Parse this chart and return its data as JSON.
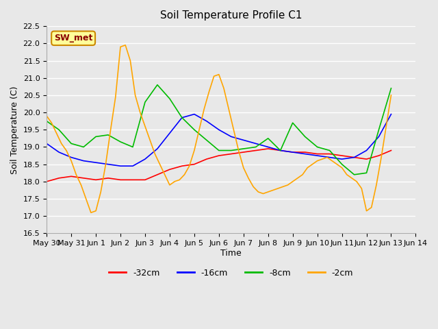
{
  "title": "Soil Temperature Profile C1",
  "xlabel": "Time",
  "ylabel": "Soil Temperature (C)",
  "ylim": [
    16.5,
    22.5
  ],
  "annotation": "SW_met",
  "annotation_color": "#8B0000",
  "annotation_bg": "#FFFF99",
  "annotation_border": "#CC8800",
  "series": {
    "-32cm": {
      "color": "#FF0000",
      "data_x": [
        0,
        0.5,
        1,
        1.5,
        2,
        2.5,
        3,
        3.5,
        4,
        4.5,
        5,
        5.5,
        6,
        6.5,
        7,
        7.5,
        8,
        8.5,
        9,
        9.5,
        10,
        10.5,
        11,
        11.5,
        12,
        12.5,
        13,
        13.5,
        14
      ],
      "data_y": [
        18.0,
        18.1,
        18.15,
        18.1,
        18.05,
        18.1,
        18.05,
        18.05,
        18.05,
        18.2,
        18.35,
        18.45,
        18.5,
        18.65,
        18.75,
        18.8,
        18.85,
        18.9,
        18.95,
        18.9,
        18.85,
        18.85,
        18.8,
        18.8,
        18.75,
        18.7,
        18.65,
        18.75,
        18.9
      ]
    },
    "-16cm": {
      "color": "#0000FF",
      "data_x": [
        0,
        0.5,
        1,
        1.5,
        2,
        2.5,
        3,
        3.5,
        4,
        4.5,
        5,
        5.5,
        6,
        6.5,
        7,
        7.5,
        8,
        8.5,
        9,
        9.5,
        10,
        10.5,
        11,
        11.5,
        12,
        12.5,
        13,
        13.5,
        14
      ],
      "data_y": [
        19.1,
        18.85,
        18.7,
        18.6,
        18.55,
        18.5,
        18.45,
        18.45,
        18.65,
        18.95,
        19.4,
        19.85,
        19.95,
        19.75,
        19.5,
        19.3,
        19.2,
        19.1,
        19.0,
        18.9,
        18.85,
        18.8,
        18.75,
        18.7,
        18.65,
        18.7,
        18.9,
        19.3,
        19.95
      ]
    },
    "-8cm": {
      "color": "#00BB00",
      "data_x": [
        0,
        0.5,
        1,
        1.5,
        2,
        2.5,
        3,
        3.5,
        4,
        4.5,
        5,
        5.5,
        6,
        6.5,
        7,
        7.5,
        8,
        8.5,
        9,
        9.5,
        10,
        10.5,
        11,
        11.5,
        12,
        12.5,
        13,
        13.5,
        14
      ],
      "data_y": [
        19.75,
        19.5,
        19.1,
        19.0,
        19.3,
        19.35,
        19.15,
        19.0,
        20.3,
        20.8,
        20.4,
        19.85,
        19.5,
        19.2,
        18.9,
        18.9,
        18.95,
        19.0,
        19.25,
        18.9,
        19.7,
        19.3,
        19.0,
        18.9,
        18.5,
        18.2,
        18.25,
        19.5,
        20.7
      ]
    },
    "-2cm": {
      "color": "#FFA500",
      "data_x": [
        0,
        0.2,
        0.4,
        0.6,
        0.8,
        1.0,
        1.2,
        1.4,
        1.6,
        1.8,
        2.0,
        2.2,
        2.4,
        2.6,
        2.8,
        3.0,
        3.2,
        3.4,
        3.6,
        3.8,
        4.0,
        4.2,
        4.4,
        4.6,
        4.8,
        5.0,
        5.2,
        5.4,
        5.6,
        5.8,
        6.0,
        6.2,
        6.4,
        6.6,
        6.8,
        7.0,
        7.2,
        7.4,
        7.6,
        7.8,
        8.0,
        8.2,
        8.4,
        8.6,
        8.8,
        9.0,
        9.2,
        9.4,
        9.6,
        9.8,
        10.0,
        10.2,
        10.4,
        10.6,
        10.8,
        11.0,
        11.2,
        11.4,
        11.6,
        11.8,
        12.0,
        12.2,
        12.4,
        12.6,
        12.8,
        13.0,
        13.2,
        13.4,
        13.6,
        13.8,
        14.0
      ],
      "data_y": [
        19.9,
        19.7,
        19.4,
        19.1,
        18.9,
        18.6,
        18.2,
        17.9,
        17.5,
        17.1,
        17.15,
        17.7,
        18.5,
        19.5,
        20.45,
        21.9,
        21.95,
        21.5,
        20.5,
        20.0,
        19.6,
        19.2,
        18.8,
        18.5,
        18.2,
        17.9,
        18.0,
        18.05,
        18.2,
        18.45,
        18.9,
        19.5,
        20.1,
        20.6,
        21.05,
        21.1,
        20.7,
        20.1,
        19.5,
        18.9,
        18.4,
        18.1,
        17.85,
        17.7,
        17.65,
        17.7,
        17.75,
        17.8,
        17.85,
        17.9,
        18.0,
        18.1,
        18.2,
        18.4,
        18.5,
        18.6,
        18.65,
        18.7,
        18.6,
        18.5,
        18.4,
        18.2,
        18.1,
        18.0,
        17.8,
        17.15,
        17.25,
        17.9,
        18.7,
        19.6,
        20.5
      ]
    }
  },
  "tick_positions": [
    0,
    1,
    2,
    3,
    4,
    5,
    6,
    7,
    8,
    9,
    10,
    11,
    12,
    13,
    14,
    15
  ],
  "tick_labels": [
    "May 30",
    "May 31",
    "Jun 1",
    "Jun 2",
    "Jun 3",
    "Jun 4",
    "Jun 5",
    "Jun 6",
    "Jun 7",
    "Jun 8",
    "Jun 9",
    "Jun 10",
    "Jun 11",
    "Jun 12",
    "Jun 13",
    "Jun 14"
  ],
  "y_ticks": [
    16.5,
    17.0,
    17.5,
    18.0,
    18.5,
    19.0,
    19.5,
    20.0,
    20.5,
    21.0,
    21.5,
    22.0,
    22.5
  ],
  "y_tick_labels": [
    "16.5",
    "17.0",
    "17.5",
    "18.0",
    "18.5",
    "19.0",
    "19.5",
    "20.0",
    "20.5",
    "21.0",
    "21.5",
    "22.0",
    "22.5"
  ],
  "bg_color": "#E8E8E8",
  "plot_bg_color": "#E8E8E8",
  "grid_color": "#FFFFFF",
  "legend_labels": [
    "-32cm",
    "-16cm",
    "-8cm",
    "-2cm"
  ],
  "legend_colors": [
    "#FF0000",
    "#0000FF",
    "#00BB00",
    "#FFA500"
  ]
}
